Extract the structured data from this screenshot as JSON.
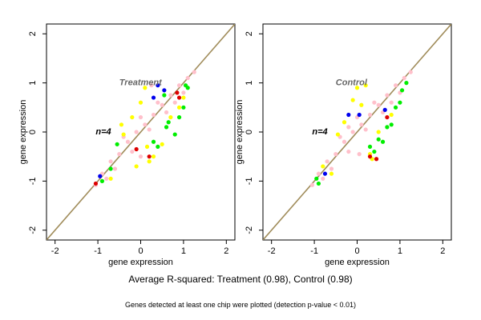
{
  "caption": "Average R-squared: Treatment (0.98), Control (0.98)",
  "note": "Genes detected at least one chip were plotted (detection p-value < 0.01)",
  "colors": {
    "pink": "#ffc0cb",
    "yellow": "#ffff00",
    "green": "#00ee00",
    "red": "#dd0000",
    "blue": "#0000ee",
    "line": "#a08c5a",
    "axis": "#000000"
  },
  "chart_data": [
    {
      "type": "scatter",
      "title": "Treatment",
      "annotation": "n=4",
      "xlabel": "gene expression",
      "ylabel": "gene expression",
      "xlim": [
        -2.2,
        2.2
      ],
      "ylim": [
        -2.2,
        2.2
      ],
      "xticks": [
        "-2",
        "-1",
        "0",
        "1",
        "2"
      ],
      "yticks": [
        "-2",
        "-1",
        "0",
        "1",
        "2"
      ],
      "reference_line": {
        "slope": 1,
        "intercept": 0
      },
      "series": [
        {
          "color": "pink",
          "points": [
            [
              -1.05,
              -1.08
            ],
            [
              -0.9,
              -0.85
            ],
            [
              -0.7,
              -0.6
            ],
            [
              -0.5,
              -0.45
            ],
            [
              -0.3,
              -0.2
            ],
            [
              -0.1,
              0.0
            ],
            [
              0.1,
              0.15
            ],
            [
              0.3,
              0.35
            ],
            [
              0.5,
              0.55
            ],
            [
              0.7,
              0.75
            ],
            [
              0.9,
              0.95
            ],
            [
              1.1,
              1.1
            ],
            [
              1.25,
              1.22
            ],
            [
              -0.6,
              -0.75
            ],
            [
              0.2,
              0.05
            ],
            [
              0.6,
              0.4
            ],
            [
              -0.2,
              -0.4
            ],
            [
              0.4,
              0.6
            ],
            [
              0.0,
              0.3
            ],
            [
              -0.4,
              -0.1
            ],
            [
              0.8,
              0.6
            ],
            [
              1.0,
              0.8
            ],
            [
              0.25,
              0.95
            ],
            [
              0.0,
              -0.5
            ],
            [
              -0.8,
              -0.95
            ]
          ]
        },
        {
          "color": "yellow",
          "points": [
            [
              -0.4,
              -0.05
            ],
            [
              -0.45,
              0.15
            ],
            [
              -0.2,
              0.3
            ],
            [
              0.1,
              0.9
            ],
            [
              0.0,
              0.6
            ],
            [
              -0.1,
              -0.7
            ],
            [
              0.2,
              -0.6
            ],
            [
              0.3,
              -0.5
            ],
            [
              0.9,
              0.5
            ],
            [
              1.0,
              0.7
            ],
            [
              0.5,
              -0.25
            ],
            [
              -0.7,
              -0.95
            ],
            [
              0.7,
              0.3
            ],
            [
              0.15,
              -0.3
            ]
          ]
        },
        {
          "color": "green",
          "points": [
            [
              -0.55,
              -0.25
            ],
            [
              -0.7,
              -0.75
            ],
            [
              0.3,
              -0.2
            ],
            [
              0.4,
              -0.3
            ],
            [
              0.6,
              0.1
            ],
            [
              0.9,
              0.3
            ],
            [
              1.0,
              0.5
            ],
            [
              1.1,
              0.9
            ],
            [
              0.8,
              -0.05
            ],
            [
              -0.9,
              -1.0
            ],
            [
              0.55,
              0.75
            ],
            [
              1.05,
              0.95
            ],
            [
              0.65,
              0.2
            ]
          ]
        },
        {
          "color": "red",
          "points": [
            [
              0.2,
              -0.5
            ],
            [
              -0.1,
              -0.35
            ],
            [
              0.9,
              0.7
            ],
            [
              0.85,
              0.8
            ],
            [
              -1.05,
              -1.05
            ]
          ]
        },
        {
          "color": "blue",
          "points": [
            [
              -0.95,
              -0.9
            ],
            [
              0.3,
              0.7
            ],
            [
              0.4,
              0.95
            ],
            [
              0.55,
              0.85
            ]
          ]
        }
      ]
    },
    {
      "type": "scatter",
      "title": "Control",
      "annotation": "n=4",
      "xlabel": "gene expression",
      "ylabel": "gene expression",
      "xlim": [
        -2.2,
        2.2
      ],
      "ylim": [
        -2.2,
        2.2
      ],
      "xticks": [
        "-2",
        "-1",
        "0",
        "1",
        "2"
      ],
      "yticks": [
        "-2",
        "-1",
        "0",
        "1",
        "2"
      ],
      "reference_line": {
        "slope": 1,
        "intercept": 0
      },
      "series": [
        {
          "color": "pink",
          "points": [
            [
              -1.05,
              -1.08
            ],
            [
              -0.9,
              -0.85
            ],
            [
              -0.7,
              -0.6
            ],
            [
              -0.5,
              -0.45
            ],
            [
              -0.3,
              -0.2
            ],
            [
              -0.1,
              0.0
            ],
            [
              0.1,
              0.15
            ],
            [
              0.3,
              0.35
            ],
            [
              0.5,
              0.55
            ],
            [
              0.7,
              0.75
            ],
            [
              0.9,
              0.95
            ],
            [
              1.1,
              1.1
            ],
            [
              1.25,
              1.22
            ],
            [
              -0.6,
              -0.75
            ],
            [
              0.2,
              0.05
            ],
            [
              0.6,
              0.4
            ],
            [
              -0.2,
              -0.4
            ],
            [
              0.4,
              0.6
            ],
            [
              0.0,
              0.3
            ],
            [
              -0.4,
              -0.1
            ],
            [
              0.8,
              0.6
            ],
            [
              1.0,
              0.8
            ],
            [
              -0.2,
              0.1
            ],
            [
              0.05,
              -0.45
            ],
            [
              -0.8,
              -0.95
            ]
          ]
        },
        {
          "color": "yellow",
          "points": [
            [
              -0.1,
              0.65
            ],
            [
              0.0,
              0.9
            ],
            [
              0.2,
              0.95
            ],
            [
              -0.3,
              0.2
            ],
            [
              0.3,
              -0.45
            ],
            [
              0.35,
              -0.55
            ],
            [
              0.8,
              0.35
            ],
            [
              -0.8,
              -0.7
            ],
            [
              -0.6,
              -0.85
            ],
            [
              0.5,
              0.0
            ],
            [
              0.1,
              0.55
            ],
            [
              -0.45,
              -0.05
            ]
          ]
        },
        {
          "color": "green",
          "points": [
            [
              0.5,
              -0.15
            ],
            [
              0.6,
              -0.2
            ],
            [
              0.8,
              0.15
            ],
            [
              1.0,
              0.6
            ],
            [
              1.15,
              1.0
            ],
            [
              0.9,
              0.5
            ],
            [
              -0.9,
              -1.05
            ],
            [
              0.4,
              -0.4
            ],
            [
              0.7,
              0.1
            ],
            [
              1.05,
              0.85
            ],
            [
              -0.95,
              -0.95
            ],
            [
              0.3,
              -0.3
            ]
          ]
        },
        {
          "color": "red",
          "points": [
            [
              0.3,
              -0.5
            ],
            [
              0.45,
              -0.55
            ],
            [
              0.7,
              0.3
            ]
          ]
        },
        {
          "color": "blue",
          "points": [
            [
              -0.75,
              -0.85
            ],
            [
              0.05,
              0.35
            ],
            [
              0.65,
              0.45
            ],
            [
              -0.2,
              0.35
            ]
          ]
        }
      ]
    }
  ]
}
